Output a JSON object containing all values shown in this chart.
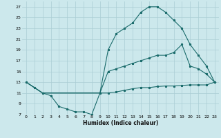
{
  "xlabel": "Humidex (Indice chaleur)",
  "bg_color": "#cce8ec",
  "grid_color": "#aacdd4",
  "line_color": "#1a6b6b",
  "xlim": [
    -0.5,
    23.5
  ],
  "ylim": [
    7,
    28
  ],
  "yticks": [
    7,
    9,
    11,
    13,
    15,
    17,
    19,
    21,
    23,
    25,
    27
  ],
  "xticks": [
    0,
    1,
    2,
    3,
    4,
    5,
    6,
    7,
    8,
    9,
    10,
    11,
    12,
    13,
    14,
    15,
    16,
    17,
    18,
    19,
    20,
    21,
    22,
    23
  ],
  "line1_x": [
    0,
    1,
    2,
    3,
    4,
    5,
    6,
    7,
    8,
    9,
    10,
    11,
    12,
    13,
    14,
    15,
    16,
    17,
    18,
    19,
    20,
    21,
    22,
    23
  ],
  "line1_y": [
    13,
    12,
    11,
    10.5,
    8.5,
    8,
    7.5,
    7.5,
    7,
    11,
    19,
    22,
    23,
    24,
    26,
    27,
    27,
    26,
    24.5,
    23,
    20,
    18,
    16,
    13
  ],
  "line2_x": [
    0,
    2,
    9,
    10,
    11,
    12,
    13,
    14,
    15,
    16,
    17,
    18,
    19,
    20,
    21,
    22,
    23
  ],
  "line2_y": [
    13,
    11,
    11,
    15,
    15.5,
    16,
    16.5,
    17,
    17.5,
    18,
    18,
    18.5,
    20,
    16,
    15.5,
    14.5,
    13
  ],
  "line3_x": [
    0,
    2,
    9,
    10,
    11,
    12,
    13,
    14,
    15,
    16,
    17,
    18,
    19,
    20,
    21,
    22,
    23
  ],
  "line3_y": [
    13,
    11,
    11,
    11,
    11.2,
    11.5,
    11.8,
    12,
    12,
    12.2,
    12.3,
    12.3,
    12.4,
    12.5,
    12.5,
    12.5,
    13
  ]
}
